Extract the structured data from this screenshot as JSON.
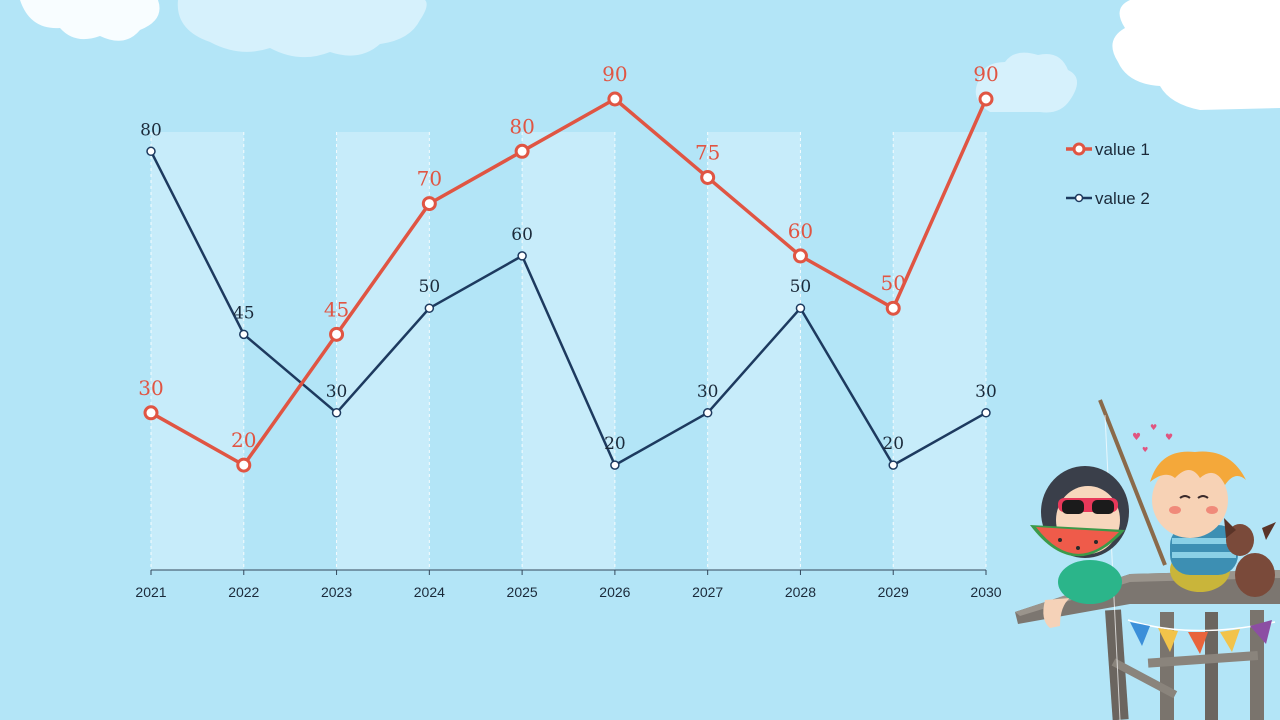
{
  "chart_data": {
    "type": "line",
    "x": [
      "2021",
      "2022",
      "2023",
      "2024",
      "2025",
      "2026",
      "2027",
      "2028",
      "2029",
      "2030"
    ],
    "ylim": [
      0,
      100
    ],
    "grid": "vertical dashed lines with alternating column bands",
    "legend_position": "top-right",
    "series": [
      {
        "name": "value 1",
        "color": "#e05543",
        "values": [
          30,
          20,
          45,
          70,
          80,
          90,
          75,
          60,
          50,
          90
        ]
      },
      {
        "name": "value 2",
        "color": "#1d3a5f",
        "values": [
          80,
          45,
          30,
          50,
          60,
          20,
          30,
          50,
          20,
          30
        ]
      }
    ]
  },
  "colors": {
    "background": "#b3e5f7",
    "band": "#c7ecfa",
    "cloud": "#ffffff",
    "cloud_soft": "#d6f1fc"
  },
  "decorations": {
    "clouds": "cloud-icon",
    "illustration": "kids-on-pier-illustration"
  }
}
